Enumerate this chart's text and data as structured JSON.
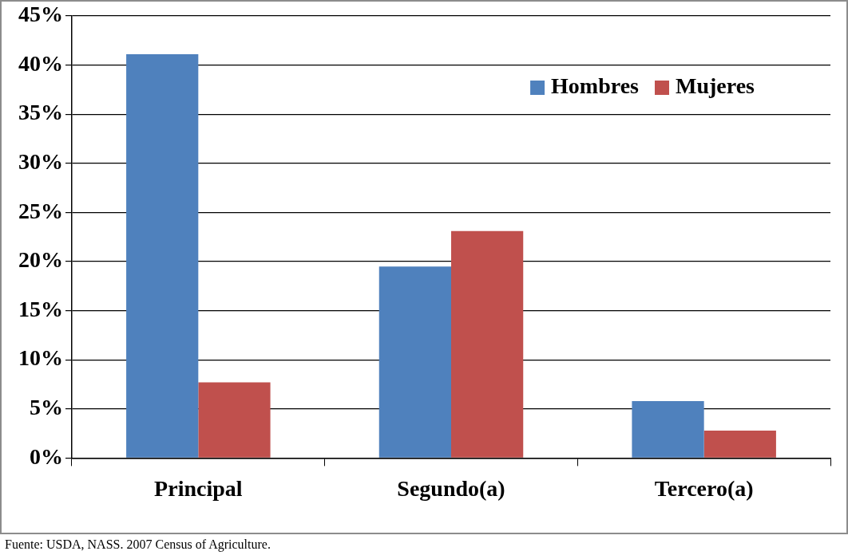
{
  "chart_data": {
    "type": "bar",
    "categories": [
      "Principal",
      "Segundo(a)",
      "Tercero(a)"
    ],
    "series": [
      {
        "name": "Hombres",
        "color": "#4f81bd",
        "values": [
          41.1,
          19.5,
          5.8
        ]
      },
      {
        "name": "Mujeres",
        "color": "#c0504d",
        "values": [
          7.7,
          23.1,
          2.8
        ]
      }
    ],
    "ylim": [
      0,
      45
    ],
    "yticks": [
      {
        "value": 0,
        "label": "0%"
      },
      {
        "value": 5,
        "label": "5%"
      },
      {
        "value": 10,
        "label": "10%"
      },
      {
        "value": 15,
        "label": "15%"
      },
      {
        "value": 20,
        "label": "20%"
      },
      {
        "value": 25,
        "label": "25%"
      },
      {
        "value": 30,
        "label": "30%"
      },
      {
        "value": 35,
        "label": "35%"
      },
      {
        "value": 40,
        "label": "40%"
      },
      {
        "value": 45,
        "label": "45%"
      }
    ],
    "grid": "y",
    "legend": "top right",
    "annotations": [
      "Fuente: USDA, NASS. 2007 Census of Agriculture."
    ]
  }
}
